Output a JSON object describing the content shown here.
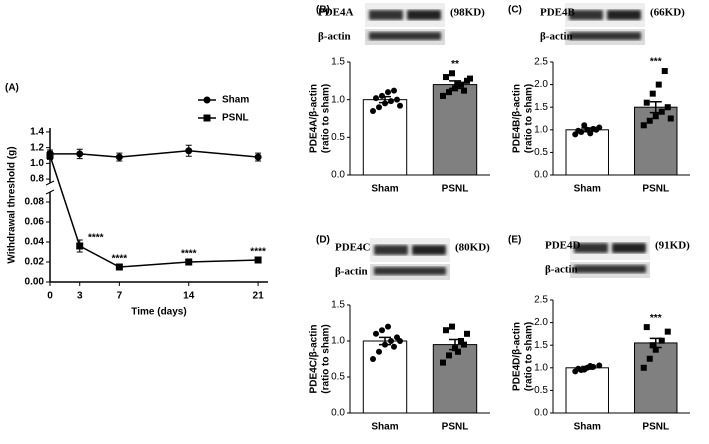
{
  "chart_data": [
    {
      "type": "line",
      "panel": "(A)",
      "xlabel": "Time (days)",
      "ylabel": "Withdrawal threshold (g)",
      "x": [
        0,
        3,
        7,
        14,
        21
      ],
      "xlim": [
        0,
        22
      ],
      "xticks": [
        0,
        3,
        7,
        14,
        21
      ],
      "ylim_upper": [
        0.75,
        1.45
      ],
      "yticks_upper": [
        0.8,
        {
          "value": 1.0,
          "label": "1.0"
        },
        1.2,
        1.4
      ],
      "ylim_lower": [
        0,
        0.09
      ],
      "yticks_lower": [
        {
          "value": 0,
          "label": "0.00"
        },
        {
          "value": 0.02,
          "label": "0.02"
        },
        {
          "value": 0.04,
          "label": "0.04"
        },
        {
          "value": 0.06,
          "label": "0.06"
        },
        {
          "value": 0.08,
          "label": "0.08"
        }
      ],
      "legend": "upper right",
      "series": [
        {
          "name": "Sham",
          "color": "#000000",
          "marker": "circle",
          "values": [
            1.12,
            1.12,
            1.08,
            1.16,
            1.08
          ],
          "errors": [
            0.05,
            0.06,
            0.05,
            0.07,
            0.05
          ]
        },
        {
          "name": "PSNL",
          "color": "#000000",
          "marker": "square",
          "values": [
            1.1,
            0.036,
            0.015,
            0.02,
            0.022
          ],
          "errors": [
            0.05,
            0.006,
            0.002,
            0.002,
            0.003
          ],
          "significance": [
            null,
            "****",
            "****",
            "****",
            "****"
          ]
        }
      ]
    },
    {
      "type": "bar",
      "panel": "(B)",
      "blot": {
        "labels": [
          "PDE4A",
          "β-actin"
        ],
        "size": "(98KD)"
      },
      "ylabel": "PDE4A/β-actin",
      "ylabel_sub": "(ratio to sham)",
      "categories": [
        "Sham",
        "PSNL"
      ],
      "values": [
        1.0,
        1.2
      ],
      "errors": [
        0.04,
        0.05
      ],
      "colors": [
        "#ffffff",
        "#808080"
      ],
      "significance": [
        null,
        "**"
      ],
      "points": [
        [
          0.85,
          0.9,
          0.95,
          0.98,
          1.0,
          1.02,
          1.05,
          1.1,
          1.12,
          0.92
        ],
        [
          1.05,
          1.1,
          1.15,
          1.2,
          1.25,
          1.3,
          1.35,
          1.2,
          1.12,
          1.28
        ]
      ],
      "ylim": [
        0,
        1.5
      ],
      "yticks": [
        {
          "value": 0,
          "label": "0.0"
        },
        0.5,
        {
          "value": 1.0,
          "label": "1.0"
        },
        1.5
      ]
    },
    {
      "type": "bar",
      "panel": "(C)",
      "blot": {
        "labels": [
          "PDE4B",
          "β-actin"
        ],
        "size": "(66KD)"
      },
      "ylabel": "PDE4B/β-actin",
      "ylabel_sub": "(ratio to sham)",
      "categories": [
        "Sham",
        "PSNL"
      ],
      "values": [
        1.0,
        1.5
      ],
      "errors": [
        0.04,
        0.12
      ],
      "colors": [
        "#ffffff",
        "#808080"
      ],
      "significance": [
        null,
        "***"
      ],
      "points": [
        [
          0.9,
          0.95,
          1.0,
          1.02,
          1.05,
          0.98,
          1.1,
          0.92,
          1.0
        ],
        [
          1.1,
          1.2,
          1.3,
          1.4,
          1.5,
          1.6,
          1.8,
          2.0,
          2.3,
          1.25
        ]
      ],
      "ylim": [
        0,
        2.5
      ],
      "yticks": [
        {
          "value": 0,
          "label": "0.0"
        },
        0.5,
        {
          "value": 1.0,
          "label": "1.0"
        },
        1.5,
        {
          "value": 2.0,
          "label": "2.0"
        },
        2.5
      ]
    },
    {
      "type": "bar",
      "panel": "(D)",
      "blot": {
        "labels": [
          "PDE4C",
          "β-actin"
        ],
        "size": "(80KD)"
      },
      "ylabel": "PDE4C/β-actin",
      "ylabel_sub": "(ratio to sham)",
      "categories": [
        "Sham",
        "PSNL"
      ],
      "values": [
        1.0,
        0.95
      ],
      "errors": [
        0.05,
        0.07
      ],
      "colors": [
        "#ffffff",
        "#808080"
      ],
      "points": [
        [
          0.75,
          0.85,
          0.95,
          1.0,
          1.05,
          1.1,
          1.15,
          1.2,
          0.92,
          1.0
        ],
        [
          0.7,
          0.8,
          0.9,
          1.0,
          1.1,
          1.15,
          1.2,
          0.85,
          0.95
        ]
      ],
      "ylim": [
        0,
        1.5
      ],
      "yticks": [
        {
          "value": 0,
          "label": "0.0"
        },
        0.5,
        {
          "value": 1.0,
          "label": "1.0"
        },
        1.5
      ]
    },
    {
      "type": "bar",
      "panel": "(E)",
      "blot": {
        "labels": [
          "PDE4D",
          "β-actin"
        ],
        "size": "(91KD)"
      },
      "ylabel": "PDE4D/β-actin",
      "ylabel_sub": "(ratio to sham)",
      "categories": [
        "Sham",
        "PSNL"
      ],
      "values": [
        1.0,
        1.55
      ],
      "errors": [
        0.03,
        0.1
      ],
      "colors": [
        "#ffffff",
        "#808080"
      ],
      "significance": [
        null,
        "***"
      ],
      "points": [
        [
          0.92,
          0.95,
          1.0,
          1.02,
          1.05,
          0.98,
          0.96,
          1.04
        ],
        [
          1.0,
          1.2,
          1.4,
          1.6,
          1.8,
          1.9,
          1.5
        ]
      ],
      "ylim": [
        0,
        2.5
      ],
      "yticks": [
        {
          "value": 0,
          "label": "0.0"
        },
        0.5,
        {
          "value": 1.0,
          "label": "1.0"
        },
        1.5,
        {
          "value": 2.0,
          "label": "2.0"
        },
        2.5
      ]
    }
  ]
}
